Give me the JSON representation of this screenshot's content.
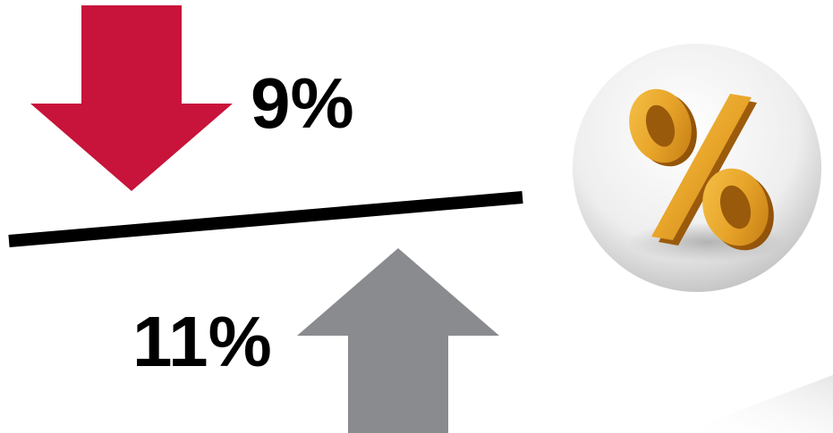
{
  "decrease": {
    "value": "9%",
    "arrow_color": "#C8133A",
    "arrow_icon": "down-arrow-icon"
  },
  "increase": {
    "value": "11%",
    "arrow_color": "#8A8B8E",
    "arrow_icon": "up-arrow-icon"
  },
  "divider_color": "#000000",
  "badge": {
    "icon": "percent-sign-icon",
    "glyph_color": "#E8A52A"
  }
}
